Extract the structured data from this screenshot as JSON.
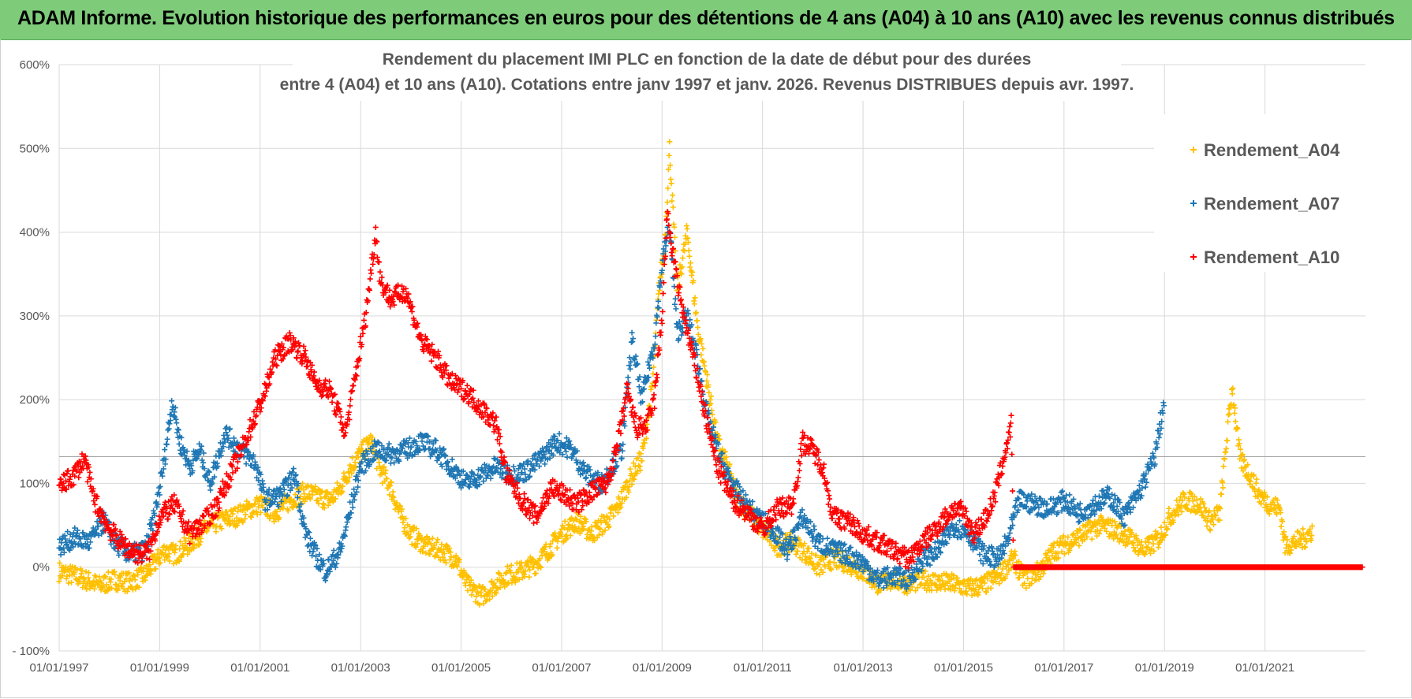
{
  "header": {
    "title": "ADAM Informe. Evolution historique des performances en euros pour des détentions de 4 ans (A04) à 10 ans (A10) avec les revenus connus distribués"
  },
  "chart_data": {
    "type": "scatter",
    "title_line1": "Rendement du placement IMI PLC en fonction de la date de début pour des durées",
    "title_line2": "entre 4 (A04) et 10 ans (A10). Cotations entre janv 1997 et janv. 2026. Revenus DISTRIBUES depuis avr. 1997.",
    "xlabel": "",
    "ylabel": "",
    "x_range": [
      1997.0,
      2023.0
    ],
    "ylim": [
      -100,
      600
    ],
    "y_ticks": [
      -100,
      0,
      100,
      200,
      300,
      400,
      500,
      600
    ],
    "y_tick_labels": [
      "- 100%",
      "0%",
      "100%",
      "200%",
      "300%",
      "400%",
      "500%",
      "600%"
    ],
    "x_ticks": [
      1997,
      1999,
      2001,
      2003,
      2005,
      2007,
      2009,
      2011,
      2013,
      2015,
      2017,
      2019,
      2021
    ],
    "x_tick_labels": [
      "01/01/1997",
      "01/01/1999",
      "01/01/2001",
      "01/01/2003",
      "01/01/2005",
      "01/01/2007",
      "01/01/2009",
      "01/01/2011",
      "01/01/2013",
      "01/01/2015",
      "01/01/2017",
      "01/01/2019",
      "01/01/2021"
    ],
    "reference_line": 132,
    "legend_position": "right",
    "marker": "+",
    "series": [
      {
        "name": "Rendement_A04",
        "color": "#ffc000",
        "points": [
          [
            1997.0,
            -5
          ],
          [
            1997.4,
            -12
          ],
          [
            1997.8,
            -22
          ],
          [
            1998.1,
            -15
          ],
          [
            1998.4,
            -18
          ],
          [
            1998.7,
            -10
          ],
          [
            1998.9,
            5
          ],
          [
            1999.1,
            20
          ],
          [
            1999.3,
            15
          ],
          [
            1999.6,
            28
          ],
          [
            1999.9,
            45
          ],
          [
            2000.2,
            55
          ],
          [
            2000.5,
            60
          ],
          [
            2000.8,
            70
          ],
          [
            2001.0,
            75
          ],
          [
            2001.3,
            65
          ],
          [
            2001.6,
            80
          ],
          [
            2001.9,
            90
          ],
          [
            2002.1,
            85
          ],
          [
            2002.4,
            80
          ],
          [
            2002.6,
            95
          ],
          [
            2002.8,
            120
          ],
          [
            2003.0,
            135
          ],
          [
            2003.2,
            150
          ],
          [
            2003.4,
            115
          ],
          [
            2003.6,
            95
          ],
          [
            2003.8,
            60
          ],
          [
            2004.0,
            40
          ],
          [
            2004.3,
            25
          ],
          [
            2004.6,
            20
          ],
          [
            2004.9,
            10
          ],
          [
            2005.1,
            -20
          ],
          [
            2005.4,
            -35
          ],
          [
            2005.7,
            -20
          ],
          [
            2005.9,
            -10
          ],
          [
            2006.2,
            -5
          ],
          [
            2006.5,
            5
          ],
          [
            2006.8,
            25
          ],
          [
            2007.0,
            40
          ],
          [
            2007.3,
            55
          ],
          [
            2007.6,
            40
          ],
          [
            2007.9,
            55
          ],
          [
            2008.1,
            70
          ],
          [
            2008.4,
            110
          ],
          [
            2008.6,
            130
          ],
          [
            2008.8,
            210
          ],
          [
            2008.95,
            340
          ],
          [
            2009.05,
            380
          ],
          [
            2009.15,
            500
          ],
          [
            2009.3,
            330
          ],
          [
            2009.5,
            400
          ],
          [
            2009.7,
            290
          ],
          [
            2009.9,
            220
          ],
          [
            2010.1,
            150
          ],
          [
            2010.3,
            120
          ],
          [
            2010.5,
            80
          ],
          [
            2010.8,
            60
          ],
          [
            2011.0,
            45
          ],
          [
            2011.3,
            25
          ],
          [
            2011.6,
            30
          ],
          [
            2011.9,
            15
          ],
          [
            2012.1,
            0
          ],
          [
            2012.4,
            10
          ],
          [
            2012.7,
            5
          ],
          [
            2013.0,
            -5
          ],
          [
            2013.3,
            -20
          ],
          [
            2013.6,
            -15
          ],
          [
            2013.9,
            -20
          ],
          [
            2014.2,
            -15
          ],
          [
            2014.5,
            -18
          ],
          [
            2014.8,
            -20
          ],
          [
            2015.1,
            -25
          ],
          [
            2015.4,
            -22
          ],
          [
            2015.7,
            -10
          ],
          [
            2016.0,
            10
          ],
          [
            2016.2,
            -15
          ],
          [
            2016.5,
            -5
          ],
          [
            2016.8,
            20
          ],
          [
            2017.1,
            30
          ],
          [
            2017.4,
            40
          ],
          [
            2017.7,
            50
          ],
          [
            2018.0,
            45
          ],
          [
            2018.3,
            35
          ],
          [
            2018.6,
            20
          ],
          [
            2018.9,
            35
          ],
          [
            2019.1,
            60
          ],
          [
            2019.4,
            80
          ],
          [
            2019.7,
            75
          ],
          [
            2019.9,
            55
          ],
          [
            2020.1,
            65
          ],
          [
            2020.25,
            160
          ],
          [
            2020.35,
            215
          ],
          [
            2020.5,
            130
          ],
          [
            2020.7,
            110
          ],
          [
            2020.9,
            85
          ],
          [
            2021.1,
            75
          ],
          [
            2021.3,
            70
          ],
          [
            2021.4,
            25
          ],
          [
            2021.6,
            30
          ],
          [
            2021.8,
            35
          ],
          [
            2021.95,
            45
          ]
        ]
      },
      {
        "name": "Rendement_A07",
        "color": "#1f77b4",
        "points": [
          [
            1997.0,
            25
          ],
          [
            1997.3,
            35
          ],
          [
            1997.6,
            30
          ],
          [
            1997.9,
            55
          ],
          [
            1998.1,
            30
          ],
          [
            1998.4,
            15
          ],
          [
            1998.7,
            20
          ],
          [
            1998.9,
            60
          ],
          [
            1999.1,
            130
          ],
          [
            1999.25,
            200
          ],
          [
            1999.4,
            150
          ],
          [
            1999.6,
            120
          ],
          [
            1999.8,
            140
          ],
          [
            2000.0,
            100
          ],
          [
            2000.3,
            160
          ],
          [
            2000.6,
            140
          ],
          [
            2000.9,
            125
          ],
          [
            2001.1,
            80
          ],
          [
            2001.4,
            85
          ],
          [
            2001.7,
            110
          ],
          [
            2001.9,
            40
          ],
          [
            2002.1,
            15
          ],
          [
            2002.3,
            -5
          ],
          [
            2002.6,
            20
          ],
          [
            2002.8,
            70
          ],
          [
            2003.0,
            120
          ],
          [
            2003.3,
            140
          ],
          [
            2003.6,
            135
          ],
          [
            2003.9,
            140
          ],
          [
            2004.2,
            150
          ],
          [
            2004.5,
            140
          ],
          [
            2004.8,
            120
          ],
          [
            2005.1,
            100
          ],
          [
            2005.4,
            110
          ],
          [
            2005.7,
            120
          ],
          [
            2006.0,
            110
          ],
          [
            2006.3,
            115
          ],
          [
            2006.6,
            130
          ],
          [
            2006.9,
            150
          ],
          [
            2007.2,
            140
          ],
          [
            2007.5,
            110
          ],
          [
            2007.8,
            100
          ],
          [
            2008.0,
            120
          ],
          [
            2008.2,
            140
          ],
          [
            2008.4,
            270
          ],
          [
            2008.6,
            200
          ],
          [
            2008.85,
            270
          ],
          [
            2009.0,
            360
          ],
          [
            2009.15,
            410
          ],
          [
            2009.3,
            280
          ],
          [
            2009.5,
            300
          ],
          [
            2009.7,
            250
          ],
          [
            2009.9,
            180
          ],
          [
            2010.1,
            140
          ],
          [
            2010.3,
            110
          ],
          [
            2010.6,
            80
          ],
          [
            2010.9,
            60
          ],
          [
            2011.2,
            45
          ],
          [
            2011.5,
            20
          ],
          [
            2011.8,
            60
          ],
          [
            2012.1,
            30
          ],
          [
            2012.4,
            20
          ],
          [
            2012.7,
            15
          ],
          [
            2013.0,
            5
          ],
          [
            2013.3,
            -15
          ],
          [
            2013.6,
            -10
          ],
          [
            2013.9,
            -15
          ],
          [
            2014.2,
            10
          ],
          [
            2014.5,
            20
          ],
          [
            2014.8,
            50
          ],
          [
            2015.1,
            40
          ],
          [
            2015.4,
            15
          ],
          [
            2015.7,
            10
          ],
          [
            2015.9,
            35
          ],
          [
            2016.1,
            80
          ],
          [
            2016.4,
            75
          ],
          [
            2016.7,
            70
          ],
          [
            2017.0,
            80
          ],
          [
            2017.3,
            65
          ],
          [
            2017.6,
            75
          ],
          [
            2017.9,
            85
          ],
          [
            2018.2,
            60
          ],
          [
            2018.5,
            90
          ],
          [
            2018.8,
            130
          ],
          [
            2019.0,
            200
          ]
        ]
      },
      {
        "name": "Rendement_A10",
        "color": "#ff0000",
        "points": [
          [
            1997.0,
            95
          ],
          [
            1997.3,
            110
          ],
          [
            1997.5,
            130
          ],
          [
            1997.7,
            80
          ],
          [
            1998.0,
            45
          ],
          [
            1998.3,
            25
          ],
          [
            1998.6,
            15
          ],
          [
            1998.8,
            20
          ],
          [
            1999.0,
            60
          ],
          [
            1999.3,
            75
          ],
          [
            1999.6,
            40
          ],
          [
            1999.9,
            55
          ],
          [
            2000.1,
            70
          ],
          [
            2000.4,
            110
          ],
          [
            2000.7,
            150
          ],
          [
            2000.9,
            180
          ],
          [
            2001.1,
            210
          ],
          [
            2001.3,
            250
          ],
          [
            2001.6,
            270
          ],
          [
            2001.9,
            250
          ],
          [
            2002.1,
            220
          ],
          [
            2002.4,
            210
          ],
          [
            2002.7,
            160
          ],
          [
            2002.9,
            230
          ],
          [
            2003.1,
            300
          ],
          [
            2003.2,
            350
          ],
          [
            2003.3,
            400
          ],
          [
            2003.4,
            340
          ],
          [
            2003.6,
            320
          ],
          [
            2003.9,
            330
          ],
          [
            2004.2,
            270
          ],
          [
            2004.5,
            250
          ],
          [
            2004.8,
            220
          ],
          [
            2005.1,
            210
          ],
          [
            2005.4,
            190
          ],
          [
            2005.7,
            170
          ],
          [
            2005.9,
            110
          ],
          [
            2006.2,
            80
          ],
          [
            2006.5,
            60
          ],
          [
            2006.8,
            95
          ],
          [
            2007.1,
            85
          ],
          [
            2007.3,
            75
          ],
          [
            2007.6,
            90
          ],
          [
            2007.9,
            100
          ],
          [
            2008.1,
            140
          ],
          [
            2008.3,
            210
          ],
          [
            2008.5,
            165
          ],
          [
            2008.7,
            170
          ],
          [
            2008.85,
            200
          ],
          [
            2009.0,
            300
          ],
          [
            2009.1,
            420
          ],
          [
            2009.3,
            340
          ],
          [
            2009.5,
            280
          ],
          [
            2009.7,
            230
          ],
          [
            2009.9,
            170
          ],
          [
            2010.1,
            120
          ],
          [
            2010.4,
            80
          ],
          [
            2010.7,
            65
          ],
          [
            2011.0,
            45
          ],
          [
            2011.3,
            70
          ],
          [
            2011.6,
            75
          ],
          [
            2011.8,
            150
          ],
          [
            2012.0,
            140
          ],
          [
            2012.2,
            120
          ],
          [
            2012.4,
            60
          ],
          [
            2012.7,
            55
          ],
          [
            2013.0,
            40
          ],
          [
            2013.3,
            30
          ],
          [
            2013.6,
            20
          ],
          [
            2013.9,
            10
          ],
          [
            2014.2,
            30
          ],
          [
            2014.5,
            50
          ],
          [
            2014.8,
            70
          ],
          [
            2015.0,
            65
          ],
          [
            2015.2,
            40
          ],
          [
            2015.4,
            55
          ],
          [
            2015.6,
            80
          ],
          [
            2015.8,
            130
          ],
          [
            2015.95,
            170
          ],
          [
            2016.0,
            0
          ],
          [
            2017.0,
            0
          ],
          [
            2018.0,
            0
          ],
          [
            2019.0,
            0
          ],
          [
            2020.0,
            0
          ],
          [
            2021.0,
            0
          ],
          [
            2022.0,
            0
          ],
          [
            2022.95,
            0
          ]
        ]
      }
    ]
  }
}
